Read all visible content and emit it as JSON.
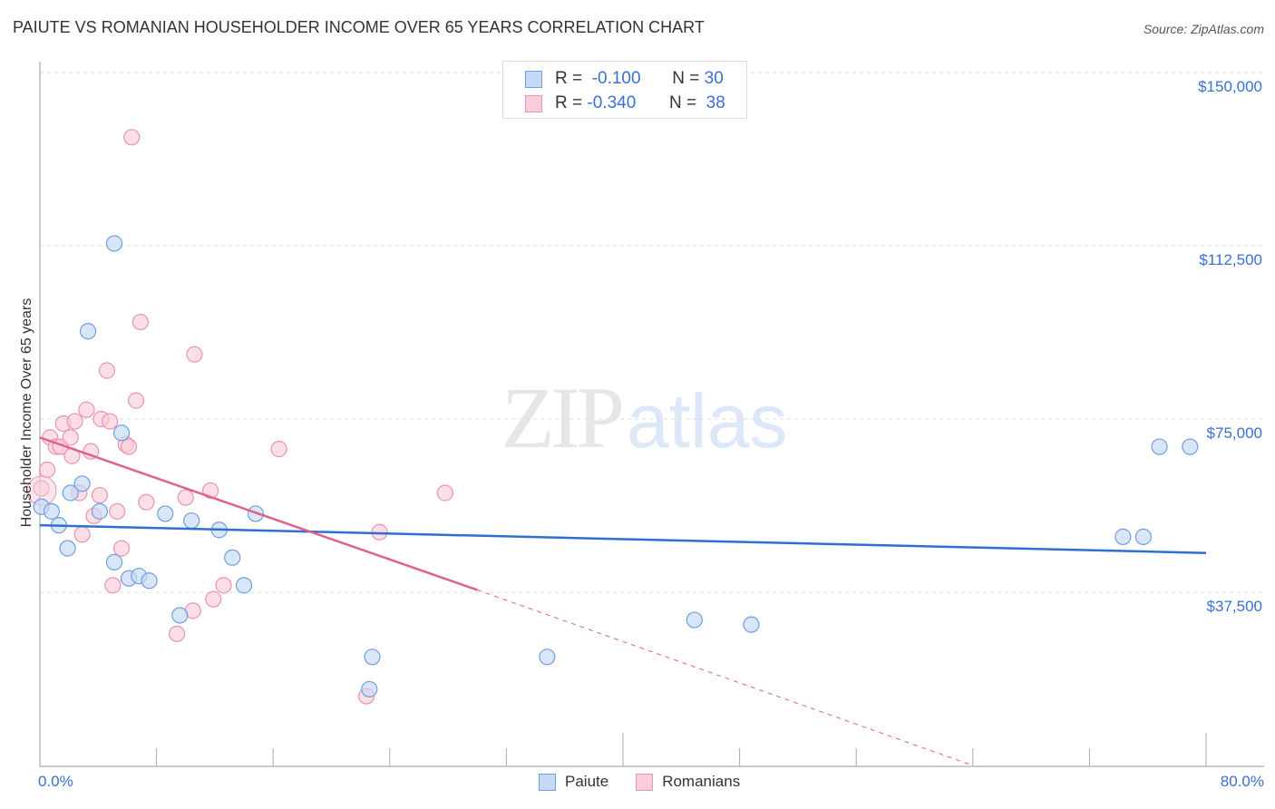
{
  "header": {
    "title": "PAIUTE VS ROMANIAN HOUSEHOLDER INCOME OVER 65 YEARS CORRELATION CHART",
    "source": "Source: ZipAtlas.com"
  },
  "legend": {
    "rows": [
      {
        "series": "Paiute",
        "r_label": "R =",
        "r_value": "-0.100",
        "n_label": "N =",
        "n_value": "30"
      },
      {
        "series": "Romanians",
        "r_label": "R =",
        "r_value": "-0.340",
        "n_label": "N =",
        "n_value": "38"
      }
    ]
  },
  "bottom_legend": {
    "items": [
      {
        "label": "Paiute"
      },
      {
        "label": "Romanians"
      }
    ]
  },
  "axes": {
    "ylabel": "Householder Income Over 65 years",
    "yticks": [
      "$150,000",
      "$112,500",
      "$75,000",
      "$37,500"
    ],
    "xtick_left": "0.0%",
    "xtick_right": "80.0%"
  },
  "watermark": {
    "zip": "ZIP",
    "atlas": "atlas"
  },
  "colors": {
    "paiute_fill": "#c5d9f5",
    "paiute_stroke": "#6f9fe0",
    "paiute_line": "#2f6fcf",
    "romanian_fill": "#f9cdd9",
    "romanian_stroke": "#e994b0",
    "romanian_line": "#e0608a",
    "tick_text": "#3a70d0"
  },
  "chart_data": {
    "type": "scatter",
    "title": "PAIUTE VS ROMANIAN HOUSEHOLDER INCOME OVER 65 YEARS CORRELATION CHART",
    "xlabel": "",
    "ylabel": "Householder Income Over 65 years",
    "xlim": [
      0,
      80
    ],
    "ylim": [
      0,
      150000
    ],
    "x_unit": "%",
    "yticks": [
      37500,
      75000,
      112500,
      150000
    ],
    "grid": true,
    "legend_position": "top-center",
    "series": [
      {
        "name": "Paiute",
        "r": -0.1,
        "n": 30,
        "points": [
          [
            0.1,
            56000
          ],
          [
            0.8,
            55000
          ],
          [
            1.3,
            52000
          ],
          [
            1.9,
            47000
          ],
          [
            2.1,
            59000
          ],
          [
            2.9,
            61000
          ],
          [
            4.1,
            55000
          ],
          [
            5.1,
            44000
          ],
          [
            5.1,
            113000
          ],
          [
            3.3,
            94000
          ],
          [
            5.6,
            72000
          ],
          [
            6.1,
            40500
          ],
          [
            6.8,
            41000
          ],
          [
            7.5,
            40000
          ],
          [
            8.6,
            54500
          ],
          [
            9.6,
            32500
          ],
          [
            10.4,
            53000
          ],
          [
            12.3,
            51000
          ],
          [
            13.2,
            45000
          ],
          [
            14.0,
            39000
          ],
          [
            14.8,
            54500
          ],
          [
            22.6,
            16500
          ],
          [
            22.8,
            23500
          ],
          [
            34.8,
            23500
          ],
          [
            44.9,
            31500
          ],
          [
            48.8,
            30500
          ],
          [
            74.3,
            49500
          ],
          [
            75.7,
            49500
          ],
          [
            76.8,
            69000
          ],
          [
            78.9,
            69000
          ]
        ],
        "trend": {
          "x": [
            0,
            80
          ],
          "y": [
            52000,
            46000
          ]
        }
      },
      {
        "name": "Romanians",
        "r": -0.34,
        "n": 38,
        "points": [
          [
            0.1,
            60000
          ],
          [
            0.5,
            64000
          ],
          [
            0.7,
            71000
          ],
          [
            1.1,
            69000
          ],
          [
            1.4,
            69000
          ],
          [
            1.6,
            74000
          ],
          [
            2.1,
            71000
          ],
          [
            2.2,
            67000
          ],
          [
            2.4,
            74500
          ],
          [
            2.7,
            59000
          ],
          [
            2.9,
            50000
          ],
          [
            3.2,
            77000
          ],
          [
            3.5,
            68000
          ],
          [
            3.7,
            54000
          ],
          [
            4.1,
            58500
          ],
          [
            4.2,
            75000
          ],
          [
            4.8,
            74500
          ],
          [
            5.0,
            39000
          ],
          [
            5.3,
            55000
          ],
          [
            5.6,
            47000
          ],
          [
            5.9,
            69500
          ],
          [
            6.1,
            69000
          ],
          [
            6.3,
            136000
          ],
          [
            6.6,
            79000
          ],
          [
            6.9,
            96000
          ],
          [
            7.3,
            57000
          ],
          [
            4.6,
            85500
          ],
          [
            9.4,
            28500
          ],
          [
            10.0,
            58000
          ],
          [
            10.5,
            33500
          ],
          [
            10.6,
            89000
          ],
          [
            11.7,
            59500
          ],
          [
            11.9,
            36000
          ],
          [
            12.6,
            39000
          ],
          [
            16.4,
            68500
          ],
          [
            22.4,
            15000
          ],
          [
            23.3,
            50500
          ],
          [
            27.8,
            59000
          ]
        ],
        "trend": {
          "x": [
            0,
            30
          ],
          "y": [
            71000,
            38000
          ]
        },
        "trend_extension": {
          "x": [
            30,
            64
          ],
          "y": [
            38000,
            0
          ],
          "style": "dashed"
        }
      }
    ]
  }
}
